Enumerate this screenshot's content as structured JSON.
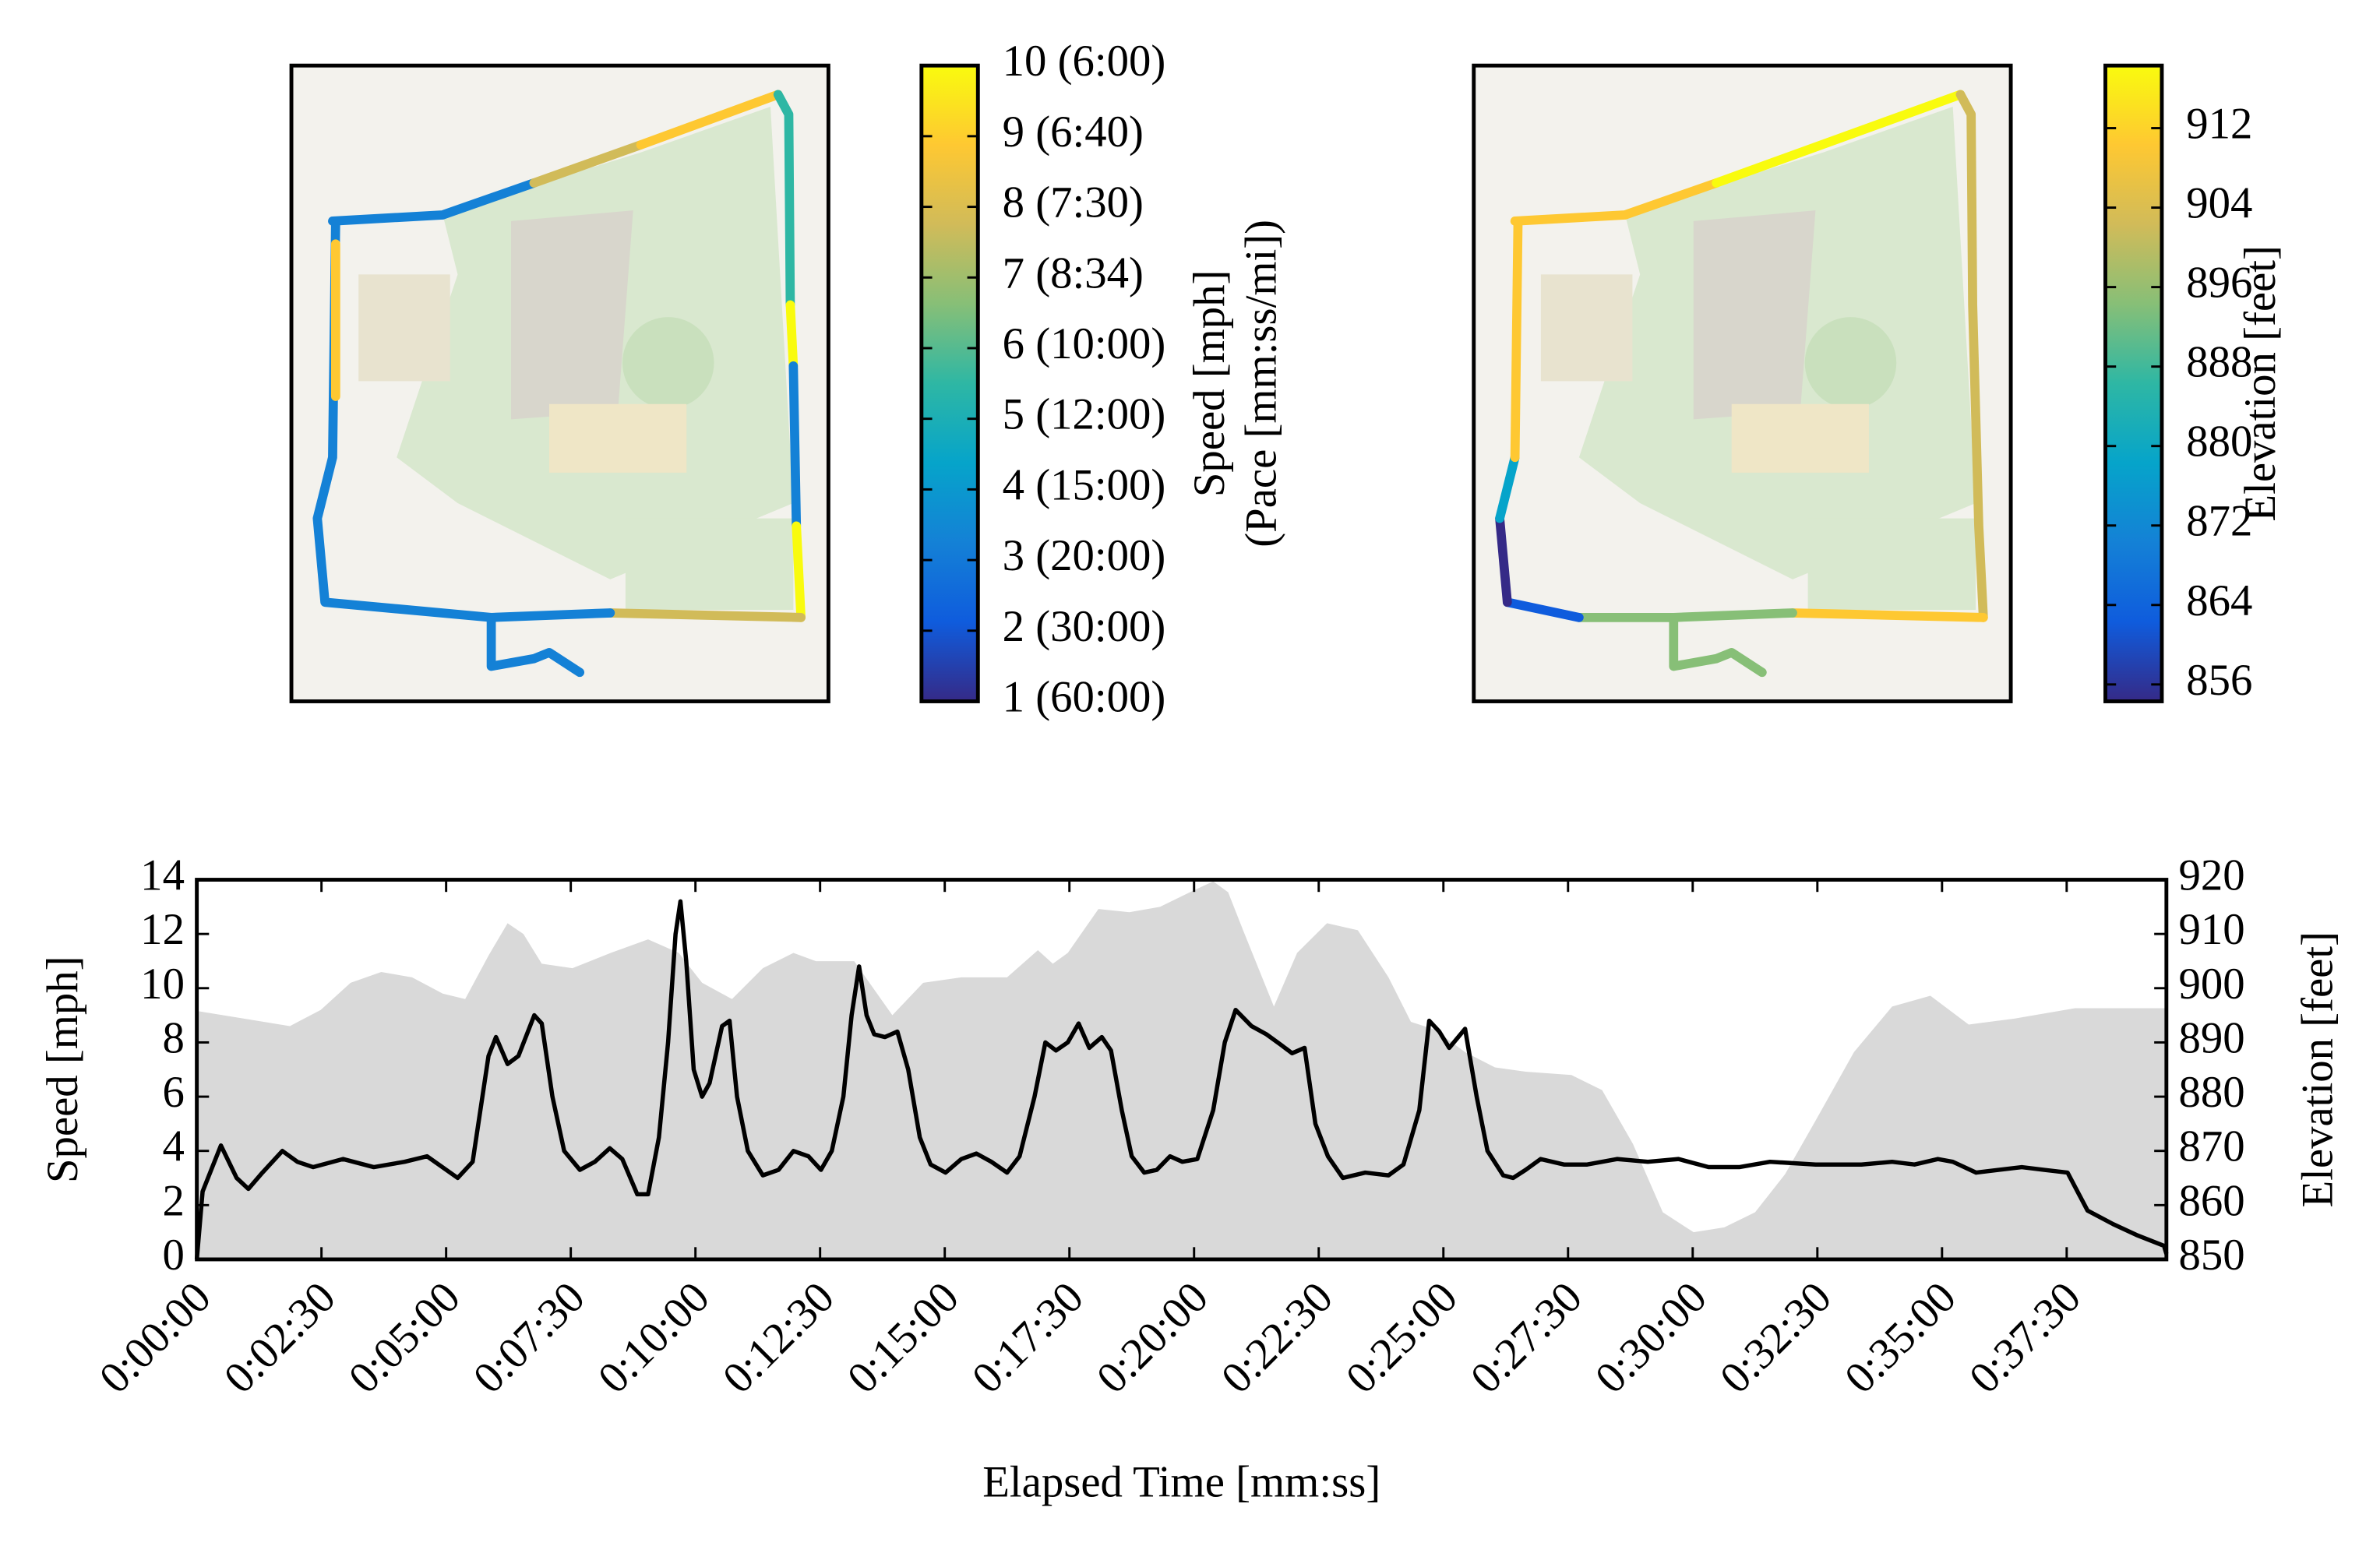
{
  "chart_data": [
    {
      "type": "map",
      "colorbar": {
        "label": [
          "Speed [mph]",
          "(Pace [mm:ss/mi])"
        ],
        "lim": [
          1,
          10
        ],
        "colormap": [
          "#352a87",
          "#0f5cdd",
          "#1481d6",
          "#06a4ca",
          "#2eb7a4",
          "#87bf77",
          "#d1bb59",
          "#fec832",
          "#f9fb0e"
        ],
        "ticks": [
          {
            "value": 1,
            "label": "1 (60:00)"
          },
          {
            "value": 2,
            "label": "2 (30:00)"
          },
          {
            "value": 3,
            "label": "3 (20:00)"
          },
          {
            "value": 4,
            "label": "4 (15:00)"
          },
          {
            "value": 5,
            "label": "5 (12:00)"
          },
          {
            "value": 6,
            "label": "6 (10:00)"
          },
          {
            "value": 7,
            "label": "7 (8:34)"
          },
          {
            "value": 8,
            "label": "8 (7:30)"
          },
          {
            "value": 9,
            "label": "9 (6:40)"
          },
          {
            "value": 10,
            "label": "10 (6:00)"
          }
        ]
      }
    },
    {
      "type": "map",
      "colorbar": {
        "label": [
          "Elevation [feet]"
        ],
        "lim": [
          854.3,
          918.3
        ],
        "colormap": [
          "#352a87",
          "#0f5cdd",
          "#1481d6",
          "#06a4ca",
          "#2eb7a4",
          "#87bf77",
          "#d1bb59",
          "#fec832",
          "#f9fb0e"
        ],
        "ticks": [
          856,
          864,
          872,
          880,
          888,
          896,
          904,
          912
        ]
      }
    },
    {
      "type": "line",
      "xlabel": "Elapsed Time [mm:ss]",
      "ylabel": "Speed [mph]",
      "y2label": "Elevation [feet]",
      "xlim": [
        0,
        2370
      ],
      "ylim": [
        0,
        14
      ],
      "y2lim": [
        850,
        920
      ],
      "xticks": [
        {
          "value": 0,
          "label": "0:00:00"
        },
        {
          "value": 150,
          "label": "0:02:30"
        },
        {
          "value": 300,
          "label": "0:05:00"
        },
        {
          "value": 450,
          "label": "0:07:30"
        },
        {
          "value": 600,
          "label": "0:10:00"
        },
        {
          "value": 750,
          "label": "0:12:30"
        },
        {
          "value": 900,
          "label": "0:15:00"
        },
        {
          "value": 1050,
          "label": "0:17:30"
        },
        {
          "value": 1200,
          "label": "0:20:00"
        },
        {
          "value": 1350,
          "label": "0:22:30"
        },
        {
          "value": 1500,
          "label": "0:25:00"
        },
        {
          "value": 1650,
          "label": "0:27:30"
        },
        {
          "value": 1800,
          "label": "0:30:00"
        },
        {
          "value": 1950,
          "label": "0:32:30"
        },
        {
          "value": 2100,
          "label": "0:35:00"
        },
        {
          "value": 2250,
          "label": "0:37:30"
        }
      ],
      "yticks": [
        0,
        2,
        4,
        6,
        8,
        10,
        12,
        14
      ],
      "y2ticks": [
        850,
        860,
        870,
        880,
        890,
        900,
        910,
        920
      ],
      "series": [
        {
          "axis": "y2",
          "color": "#d9d9d9",
          "fill": true,
          "x": [
            0,
            57,
            112,
            149,
            185,
            222,
            259,
            296,
            323,
            351,
            374,
            393,
            415,
            452,
            498,
            543,
            580,
            608,
            644,
            681,
            718,
            745,
            791,
            837,
            874,
            920,
            975,
            1012,
            1030,
            1048,
            1085,
            1122,
            1159,
            1195,
            1223,
            1241,
            1259,
            1296,
            1324,
            1360,
            1397,
            1434,
            1461,
            1489,
            1526,
            1562,
            1599,
            1654,
            1691,
            1728,
            1764,
            1801,
            1838,
            1875,
            1911,
            1948,
            1994,
            2040,
            2086,
            2132,
            2187,
            2260,
            2370
          ],
          "values": [
            895.8,
            894.4,
            893,
            896,
            901,
            903,
            902,
            899,
            898,
            906,
            912,
            910,
            904.5,
            903.7,
            906.5,
            909,
            906.5,
            901,
            898,
            903.7,
            906.5,
            905,
            905,
            895,
            901,
            902,
            902,
            907,
            904.5,
            906.5,
            914.6,
            914,
            915,
            917.7,
            919.7,
            917.7,
            910.7,
            896.6,
            906.5,
            912,
            910.7,
            902,
            893.8,
            892.4,
            888.2,
            885.4,
            884.6,
            884,
            881.2,
            871.3,
            858.7,
            855,
            855.9,
            858.7,
            865.7,
            875.6,
            888.2,
            896.6,
            898.6,
            893.3,
            894.4,
            896.3,
            896.3
          ]
        },
        {
          "color": "#000000",
          "x": [
            0,
            7,
            29,
            48,
            62,
            79,
            103,
            121,
            140,
            176,
            213,
            250,
            277,
            314,
            332,
            351,
            360,
            374,
            387,
            406,
            415,
            428,
            442,
            461,
            479,
            497,
            512,
            530,
            543,
            556,
            567,
            576,
            582,
            589,
            598,
            608,
            617,
            632,
            641,
            650,
            663,
            681,
            700,
            718,
            736,
            751,
            764,
            778,
            788,
            797,
            806,
            815,
            828,
            843,
            856,
            870,
            883,
            901,
            920,
            938,
            956,
            975,
            990,
            1008,
            1021,
            1034,
            1048,
            1061,
            1074,
            1089,
            1100,
            1113,
            1125,
            1140,
            1155,
            1171,
            1186,
            1204,
            1223,
            1237,
            1250,
            1269,
            1287,
            1305,
            1318,
            1333,
            1346,
            1361,
            1379,
            1406,
            1434,
            1452,
            1471,
            1483,
            1495,
            1507,
            1526,
            1540,
            1553,
            1572,
            1584,
            1599,
            1617,
            1645,
            1673,
            1709,
            1746,
            1783,
            1819,
            1856,
            1893,
            1948,
            2003,
            2040,
            2067,
            2095,
            2113,
            2141,
            2168,
            2196,
            2223,
            2251,
            2275,
            2306,
            2334,
            2367,
            2370
          ],
          "values": [
            0,
            2.5,
            4.2,
            3,
            2.6,
            3.2,
            4,
            3.6,
            3.4,
            3.7,
            3.4,
            3.6,
            3.8,
            3,
            3.6,
            7.5,
            8.2,
            7.2,
            7.5,
            9,
            8.7,
            6,
            4,
            3.3,
            3.6,
            4.1,
            3.7,
            2.4,
            2.4,
            4.5,
            8,
            12,
            13.2,
            11,
            7,
            6,
            6.5,
            8.6,
            8.8,
            6,
            4,
            3.1,
            3.3,
            4,
            3.8,
            3.3,
            4,
            6,
            9,
            10.8,
            9,
            8.3,
            8.2,
            8.4,
            7,
            4.5,
            3.5,
            3.2,
            3.7,
            3.9,
            3.6,
            3.2,
            3.8,
            6,
            8,
            7.7,
            8,
            8.7,
            7.8,
            8.2,
            7.7,
            5.5,
            3.8,
            3.2,
            3.3,
            3.8,
            3.6,
            3.7,
            5.5,
            8,
            9.2,
            8.6,
            8.3,
            7.9,
            7.6,
            7.8,
            5,
            3.8,
            3,
            3.2,
            3.1,
            3.5,
            5.5,
            8.8,
            8.4,
            7.8,
            8.5,
            6,
            4,
            3.1,
            3,
            3.3,
            3.7,
            3.5,
            3.5,
            3.7,
            3.6,
            3.7,
            3.4,
            3.4,
            3.6,
            3.5,
            3.5,
            3.6,
            3.5,
            3.7,
            3.6,
            3.2,
            3.3,
            3.4,
            3.3,
            3.2,
            1.8,
            1.3,
            0.9,
            0.5,
            0.2
          ]
        }
      ]
    }
  ]
}
